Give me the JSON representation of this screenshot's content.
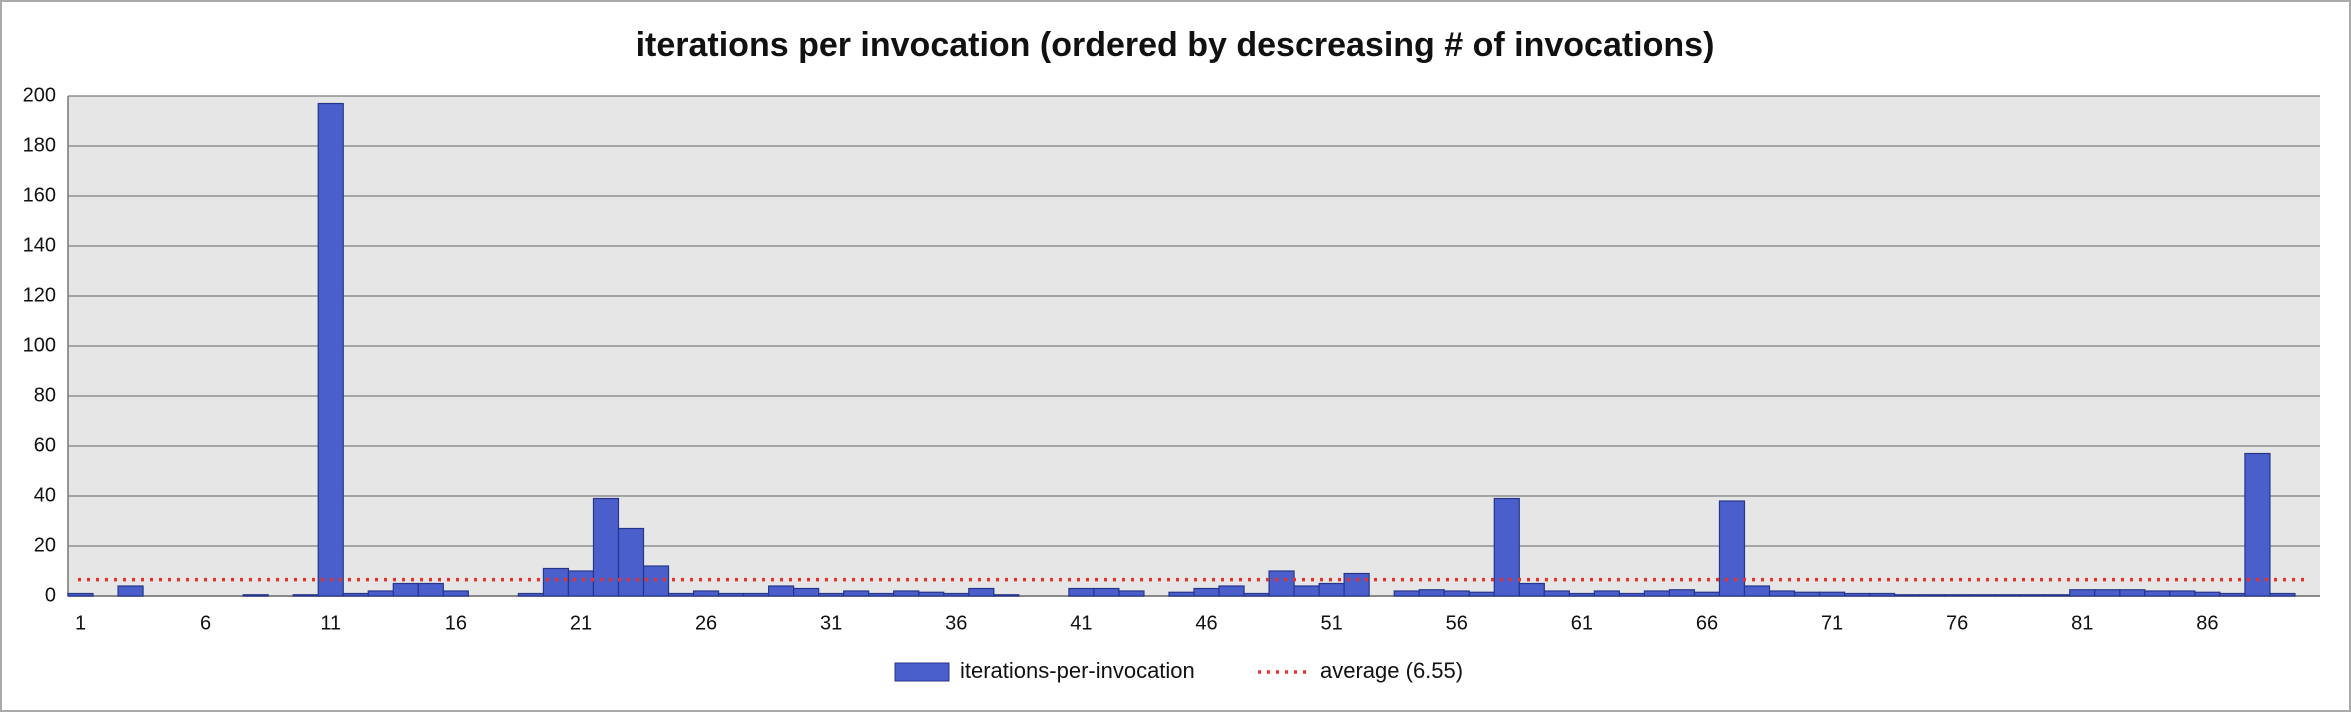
{
  "chart_data": {
    "type": "bar",
    "title": "iterations per invocation (ordered by descreasing # of invocations)",
    "categories": [
      "1",
      null,
      null,
      null,
      null,
      "6",
      null,
      null,
      null,
      null,
      "11",
      null,
      null,
      null,
      null,
      "16",
      null,
      null,
      null,
      null,
      "21",
      null,
      null,
      null,
      null,
      "26",
      null,
      null,
      null,
      null,
      "31",
      null,
      null,
      null,
      null,
      "36",
      null,
      null,
      null,
      null,
      "41",
      null,
      null,
      null,
      null,
      "46",
      null,
      null,
      null,
      null,
      "51",
      null,
      null,
      null,
      null,
      "56",
      null,
      null,
      null,
      null,
      "61",
      null,
      null,
      null,
      null,
      "66",
      null,
      null,
      null,
      null,
      "71",
      null,
      null,
      null,
      null,
      "76",
      null,
      null,
      null,
      null,
      "81",
      null,
      null,
      null,
      null,
      "86",
      null,
      null,
      null,
      null
    ],
    "series": [
      {
        "name": "iterations-per-invocation",
        "color": "#4a5fcb",
        "values": [
          1,
          0,
          4,
          0,
          0,
          0,
          0,
          0.5,
          0,
          0.5,
          197,
          1,
          2,
          5,
          5,
          2,
          0,
          0,
          1,
          11,
          10,
          39,
          27,
          12,
          1,
          2,
          1,
          1,
          4,
          3,
          1,
          2,
          1,
          2,
          1.5,
          1,
          3,
          0.5,
          0,
          0,
          3,
          3,
          2,
          0,
          1.5,
          3,
          4,
          1,
          10,
          4,
          5,
          9,
          0,
          2,
          2.5,
          2,
          1.5,
          39,
          5,
          2,
          1,
          2,
          1,
          2,
          2.5,
          1.5,
          38,
          4,
          2,
          1.5,
          1.5,
          1,
          1,
          0.5,
          0.5,
          0.5,
          0.5,
          0.5,
          0.5,
          0.5,
          2.5,
          2.5,
          2.5,
          2,
          2,
          1.5,
          1,
          57,
          1,
          0
        ]
      }
    ],
    "average": {
      "name": "average (6.55)",
      "value": 6.55,
      "color": "#e8332a"
    },
    "ylim": [
      0,
      200
    ],
    "yticks": [
      0,
      20,
      40,
      60,
      80,
      100,
      120,
      140,
      160,
      180,
      200
    ],
    "grid": true
  }
}
